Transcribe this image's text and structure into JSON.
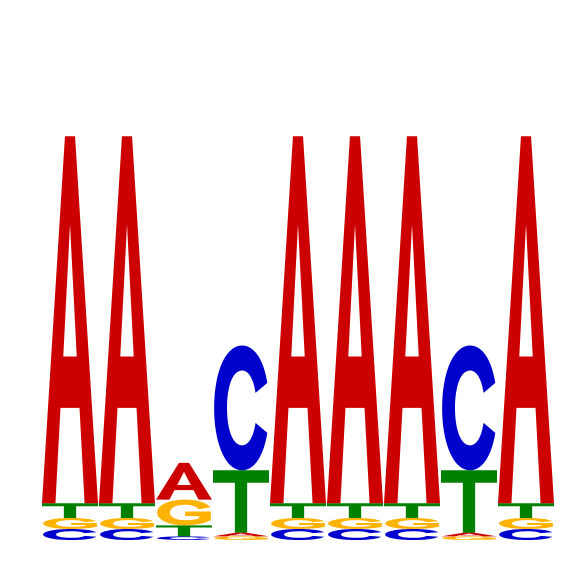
{
  "chart_data": {
    "type": "sequence-logo",
    "colors": {
      "A": "#cc0000",
      "C": "#0000cc",
      "G": "#ffb300",
      "T": "#008000"
    },
    "positions": [
      {
        "position": 1,
        "letters": [
          {
            "base": "C",
            "height": 0.03
          },
          {
            "base": "G",
            "height": 0.03
          },
          {
            "base": "T",
            "height": 0.04
          },
          {
            "base": "A",
            "height": 1.0
          }
        ]
      },
      {
        "position": 2,
        "letters": [
          {
            "base": "C",
            "height": 0.03
          },
          {
            "base": "G",
            "height": 0.03
          },
          {
            "base": "T",
            "height": 0.04
          },
          {
            "base": "A",
            "height": 1.0
          }
        ]
      },
      {
        "position": 3,
        "letters": [
          {
            "base": "C",
            "height": 0.01
          },
          {
            "base": "T",
            "height": 0.03
          },
          {
            "base": "G",
            "height": 0.07
          },
          {
            "base": "A",
            "height": 0.1
          }
        ]
      },
      {
        "position": 4,
        "letters": [
          {
            "base": "G",
            "height": 0.01
          },
          {
            "base": "A",
            "height": 0.01
          },
          {
            "base": "T",
            "height": 0.17
          },
          {
            "base": "C",
            "height": 0.34
          }
        ]
      },
      {
        "position": 5,
        "letters": [
          {
            "base": "C",
            "height": 0.03
          },
          {
            "base": "G",
            "height": 0.03
          },
          {
            "base": "T",
            "height": 0.04
          },
          {
            "base": "A",
            "height": 1.0
          }
        ]
      },
      {
        "position": 6,
        "letters": [
          {
            "base": "C",
            "height": 0.03
          },
          {
            "base": "G",
            "height": 0.03
          },
          {
            "base": "T",
            "height": 0.04
          },
          {
            "base": "A",
            "height": 1.0
          }
        ]
      },
      {
        "position": 7,
        "letters": [
          {
            "base": "C",
            "height": 0.03
          },
          {
            "base": "G",
            "height": 0.03
          },
          {
            "base": "T",
            "height": 0.04
          },
          {
            "base": "A",
            "height": 1.0
          }
        ]
      },
      {
        "position": 8,
        "letters": [
          {
            "base": "G",
            "height": 0.01
          },
          {
            "base": "A",
            "height": 0.01
          },
          {
            "base": "T",
            "height": 0.17
          },
          {
            "base": "C",
            "height": 0.34
          }
        ]
      },
      {
        "position": 9,
        "letters": [
          {
            "base": "C",
            "height": 0.03
          },
          {
            "base": "G",
            "height": 0.03
          },
          {
            "base": "T",
            "height": 0.04
          },
          {
            "base": "A",
            "height": 1.0
          }
        ]
      }
    ]
  }
}
